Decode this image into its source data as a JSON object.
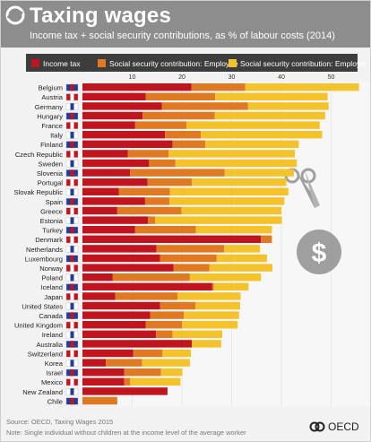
{
  "header": {
    "title": "Taxing wages",
    "subtitle": "Income tax + social security contributions, as % of labour costs (2014)"
  },
  "legend": [
    {
      "label": "Income tax",
      "color": "#c0141f"
    },
    {
      "label": "Social security contribution: Employee",
      "color": "#e07a22"
    },
    {
      "label": "Social security contribution: Employer",
      "color": "#f4c22b"
    }
  ],
  "footer": {
    "source": "Source: OECD, Taxing Wages 2015",
    "note": "Note: Single individual without children at the income level of the average worker",
    "brand": "OECD"
  },
  "icons": {
    "logo": "oecd-logo-icon",
    "illustration": "scissors-money-icon",
    "flags": "country-flag-icon"
  },
  "chart_data": {
    "type": "bar",
    "orientation": "horizontal",
    "stacked": true,
    "x_unit": "%",
    "xlim": [
      0,
      60
    ],
    "x_ticks": [
      10,
      20,
      30,
      40,
      50,
      60
    ],
    "categories": [
      "Belgium",
      "Austria",
      "Germany",
      "Hungary",
      "France",
      "Italy",
      "Finland",
      "Czech Republic",
      "Sweden",
      "Slovenia",
      "Portugal",
      "Slovak Republic",
      "Spain",
      "Greece",
      "Estonia",
      "Turkey",
      "Denmark",
      "Netherlands",
      "Luxembourg",
      "Norway",
      "Poland",
      "Iceland",
      "Japan",
      "United States",
      "Canada",
      "United Kingdom",
      "Ireland",
      "Australia",
      "Switzerland",
      "Korea",
      "Israel",
      "Mexico",
      "New Zealand",
      "Chile"
    ],
    "series": [
      {
        "name": "Income tax",
        "color": "#c0141f",
        "values": [
          21.9,
          12.7,
          16.0,
          12.1,
          10.6,
          16.6,
          18.1,
          9.1,
          13.4,
          9.6,
          13.1,
          7.3,
          12.6,
          7.0,
          13.2,
          10.6,
          35.9,
          14.9,
          15.6,
          18.3,
          6.1,
          26.1,
          6.6,
          15.6,
          13.6,
          12.7,
          14.8,
          22.0,
          10.2,
          4.7,
          8.4,
          8.4,
          17.1,
          0.0
        ]
      },
      {
        "name": "Social security contribution: Employee",
        "color": "#e07a22",
        "values": [
          10.8,
          14.0,
          17.3,
          14.5,
          10.3,
          7.2,
          6.6,
          8.2,
          5.3,
          19.0,
          8.9,
          10.3,
          4.9,
          12.9,
          1.4,
          12.2,
          2.2,
          13.6,
          11.4,
          7.2,
          15.5,
          0.3,
          12.5,
          7.1,
          6.8,
          7.3,
          3.3,
          0.0,
          5.9,
          7.3,
          7.4,
          1.2,
          0.0,
          7.0
        ]
      },
      {
        "name": "Social security contribution: Employer",
        "color": "#f4c22b",
        "values": [
          22.9,
          22.6,
          16.2,
          22.2,
          26.8,
          24.4,
          18.8,
          25.4,
          24.4,
          13.9,
          19.0,
          23.8,
          23.1,
          20.1,
          25.5,
          15.3,
          0.0,
          7.2,
          10.1,
          12.7,
          14.3,
          7.0,
          12.7,
          9.0,
          11.1,
          11.2,
          10.0,
          5.9,
          5.7,
          9.6,
          4.3,
          10.1,
          0.0,
          0.0
        ]
      }
    ]
  }
}
